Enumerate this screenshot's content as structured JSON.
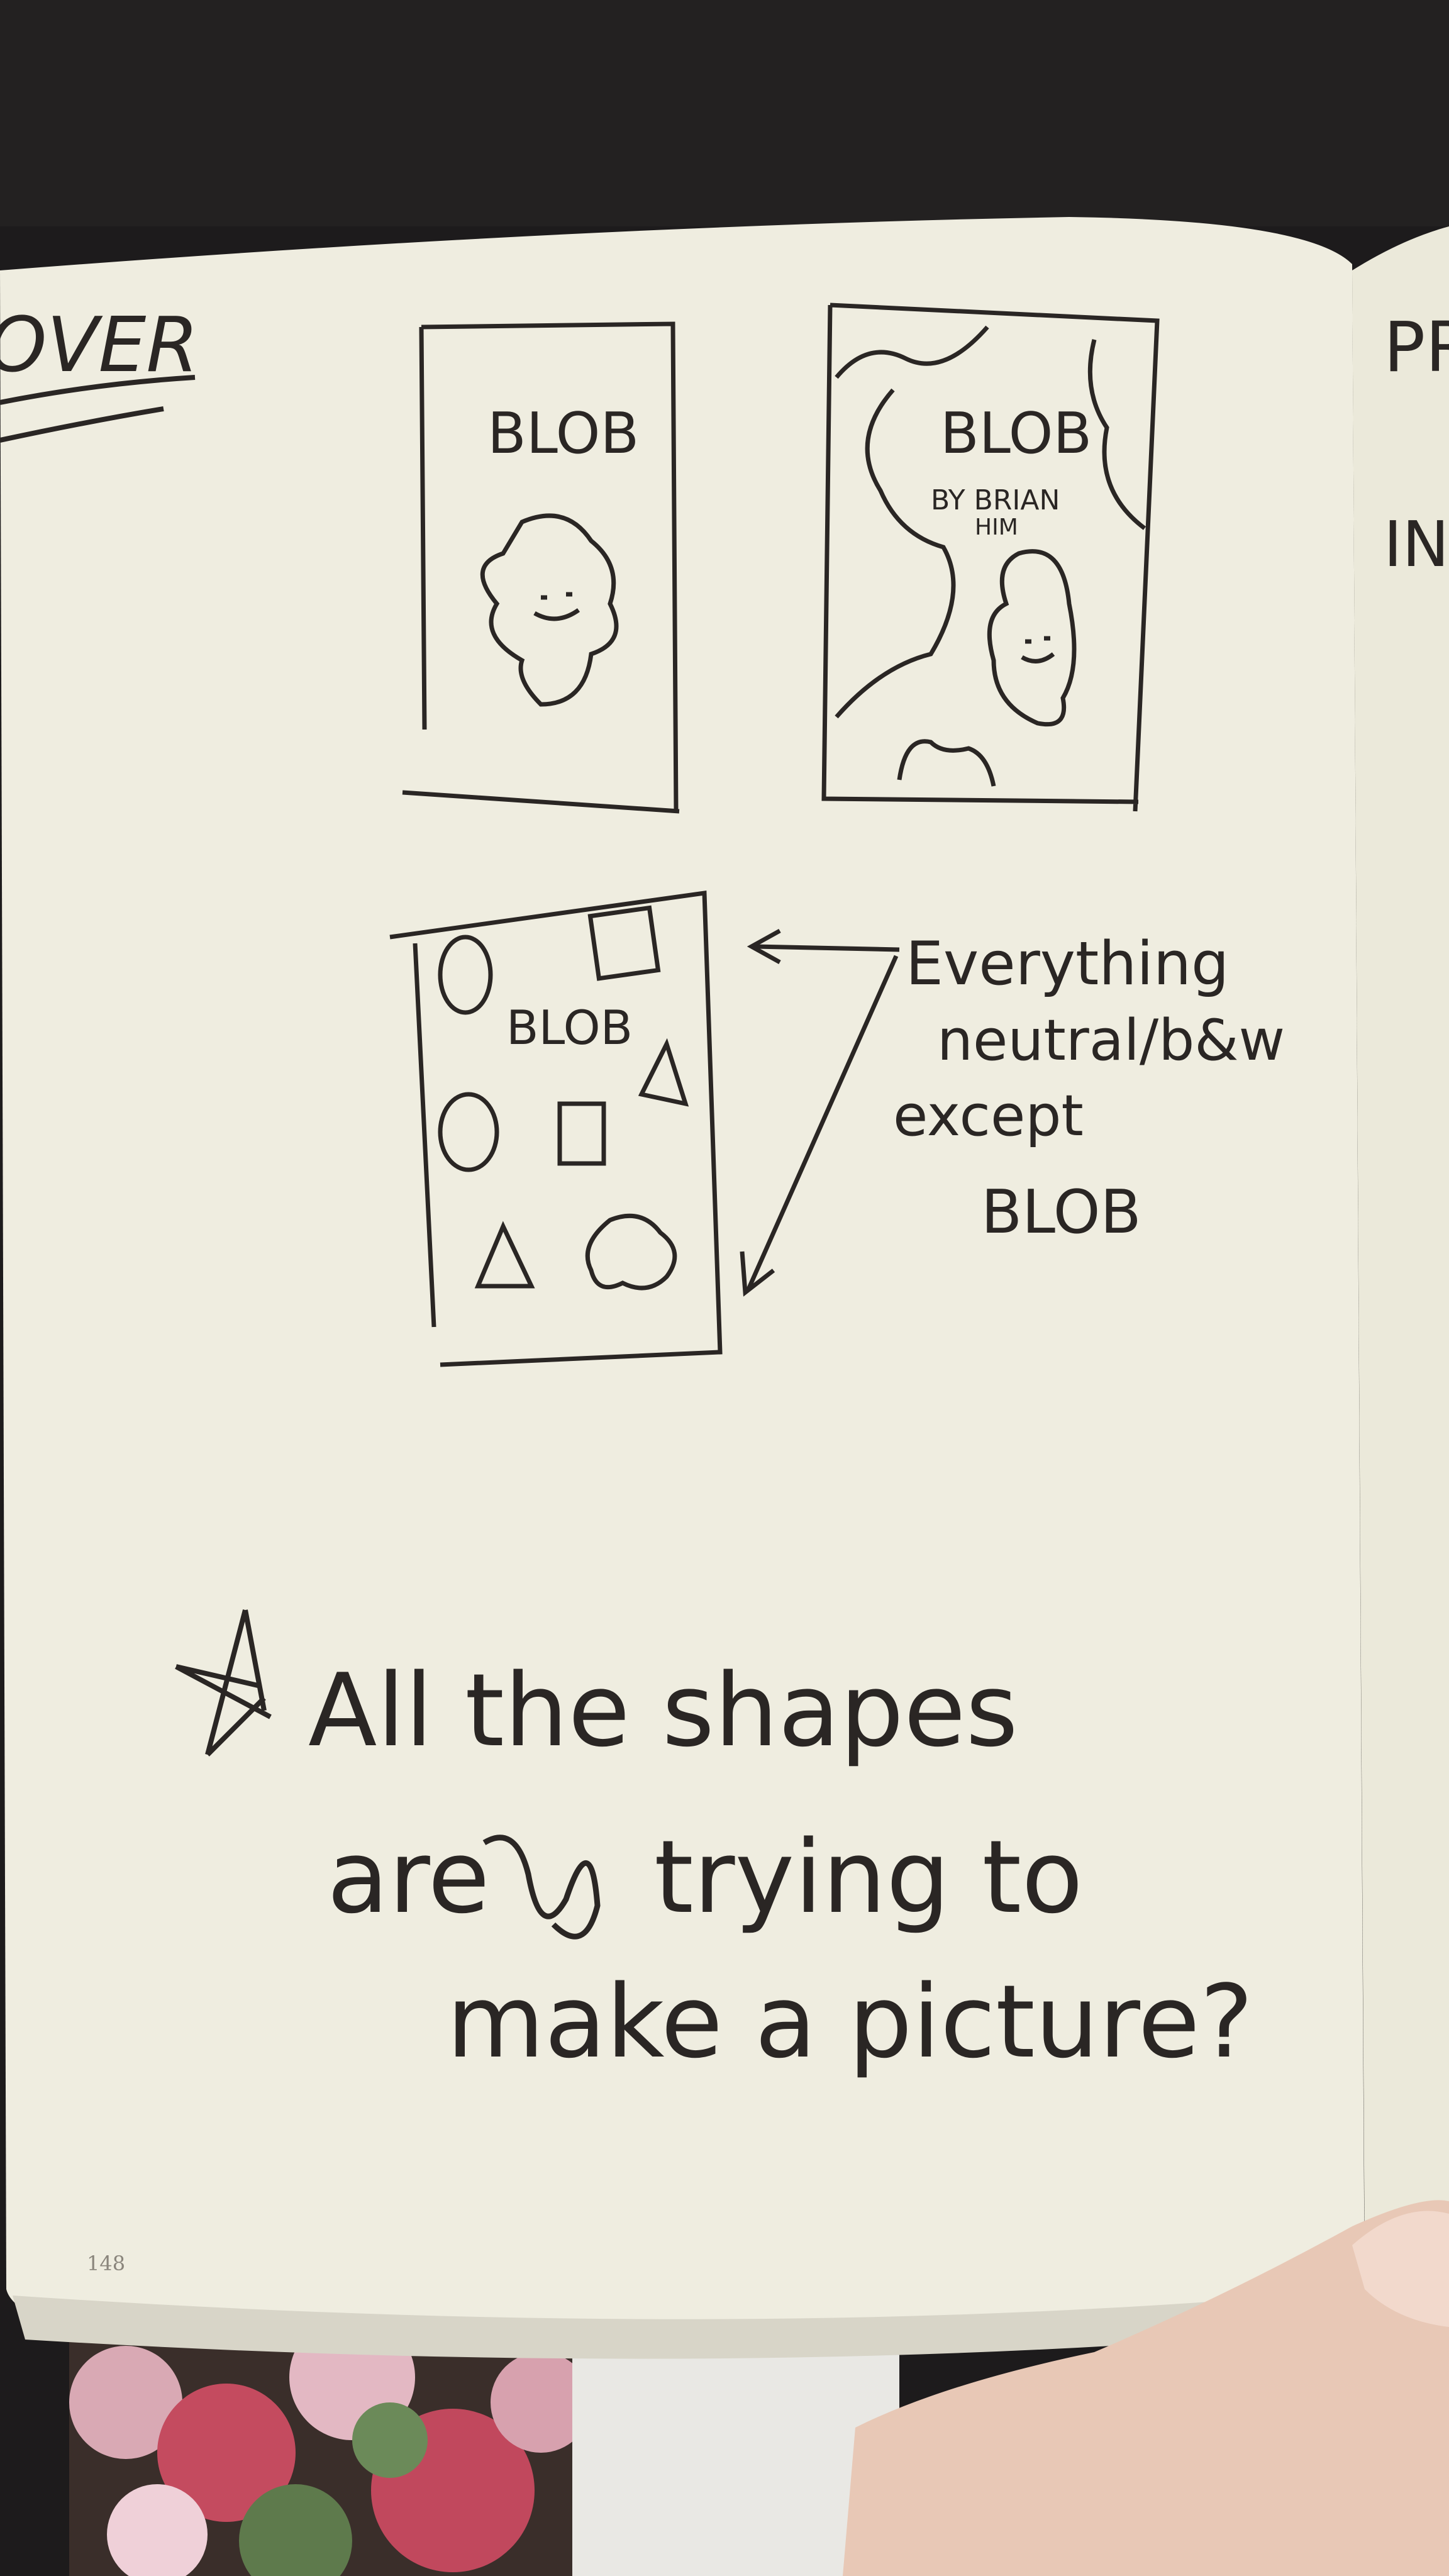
{
  "page": {
    "colors": {
      "paper": "#efede0",
      "ink": "#2a2624",
      "background": "#1d1b1c",
      "skin": "#e8c8b6"
    },
    "header_partial": "OVER",
    "right_page_partial": [
      "PR",
      "IN"
    ],
    "page_number": "148"
  },
  "sketches": {
    "cover1": {
      "title": "BLOB"
    },
    "cover2": {
      "title": "BLOB",
      "byline": "BY BRIAN",
      "byline2": "HIM"
    },
    "cover3": {
      "title": "BLOB"
    }
  },
  "annotation": {
    "lines": [
      "Everything",
      "neutral/b&w",
      "except",
      "BLOB"
    ]
  },
  "note": {
    "lines": [
      "All the shapes",
      "are",
      "trying to",
      "make a picture?"
    ]
  }
}
